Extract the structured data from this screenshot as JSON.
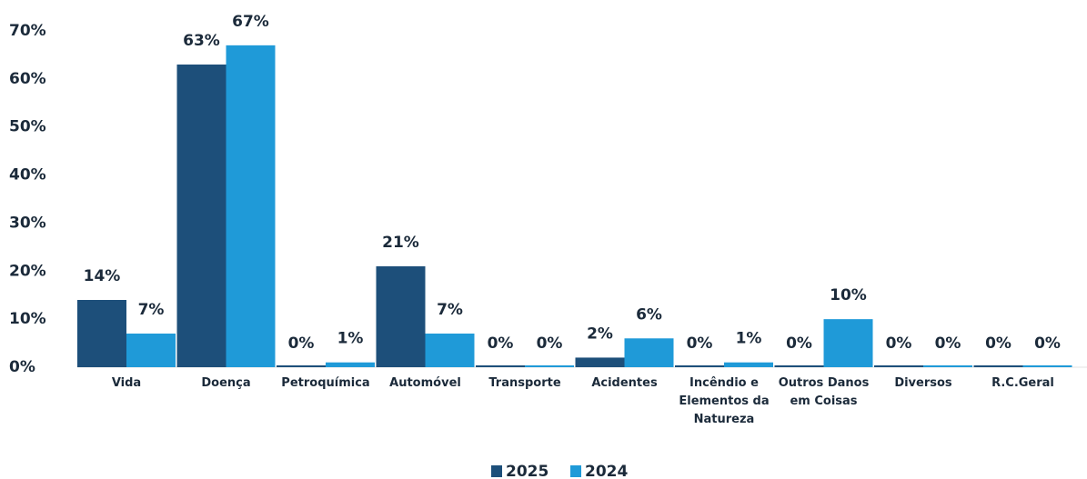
{
  "chart_data": {
    "type": "bar",
    "categories": [
      "Vida",
      "Doença",
      "Petroquímica",
      "Automóvel",
      "Transporte",
      "Acidentes",
      "Incêndio e Elementos da Natureza",
      "Outros Danos em Coisas",
      "Diversos",
      "R.C.Geral"
    ],
    "series": [
      {
        "name": "2025",
        "color": "#1d4f7a",
        "values": [
          14,
          63,
          0,
          21,
          0,
          2,
          0,
          0,
          0,
          0
        ],
        "value_labels": [
          "14%",
          "63%",
          "0%",
          "21%",
          "0%",
          "2%",
          "0%",
          "0%",
          "0%",
          "0%"
        ]
      },
      {
        "name": "2024",
        "color": "#1f9ad8",
        "values": [
          7,
          67,
          1,
          7,
          0,
          6,
          1,
          10,
          0,
          0
        ],
        "value_labels": [
          "7%",
          "67%",
          "1%",
          "7%",
          "0%",
          "6%",
          "1%",
          "10%",
          "0%",
          "0%"
        ]
      }
    ],
    "ylim": [
      0,
      70
    ],
    "yticks": [
      {
        "value": 0,
        "label": "0%"
      },
      {
        "value": 10,
        "label": "10%"
      },
      {
        "value": 20,
        "label": "20%"
      },
      {
        "value": 30,
        "label": "30%"
      },
      {
        "value": 40,
        "label": "40%"
      },
      {
        "value": 50,
        "label": "50%"
      },
      {
        "value": 60,
        "label": "60%"
      },
      {
        "value": 70,
        "label": "70%"
      }
    ],
    "legend": "bottom"
  }
}
